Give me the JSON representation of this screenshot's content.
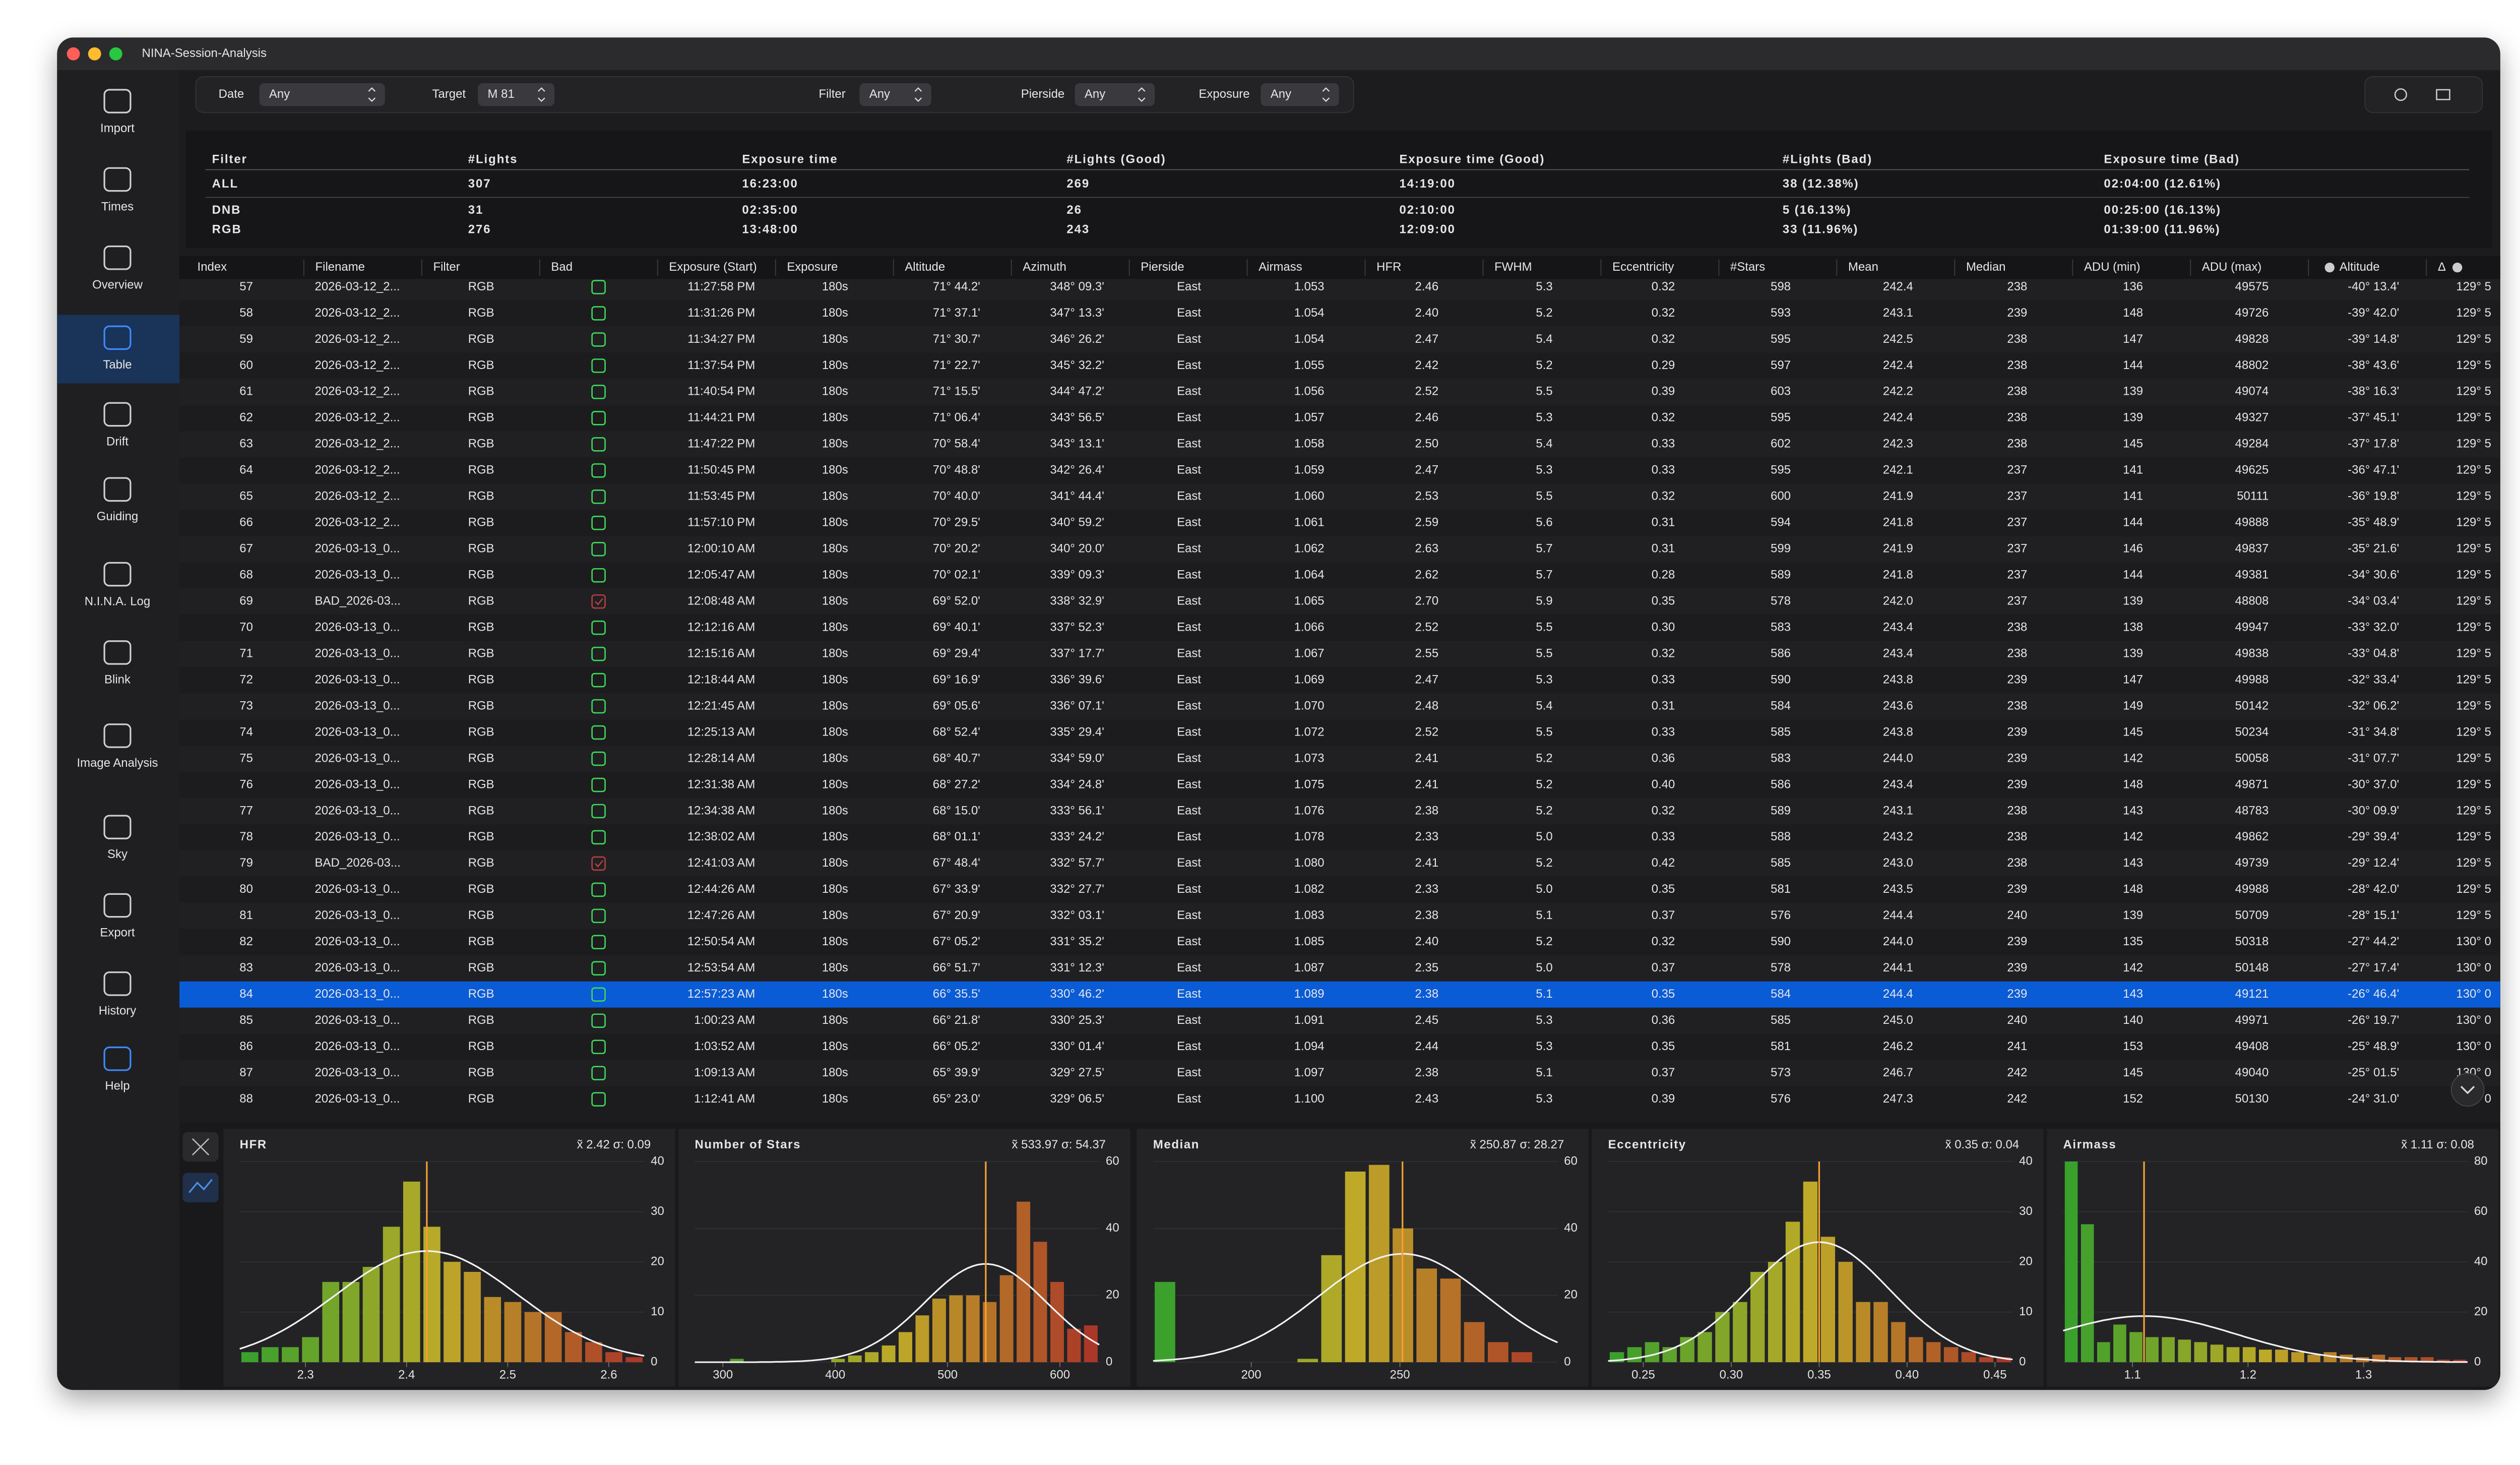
{
  "window": {
    "title": "NINA-Session-Analysis"
  },
  "sidebar": {
    "items": [
      "Import",
      "Times",
      "Overview",
      "Table",
      "Drift",
      "Guiding",
      "N.I.N.A. Log",
      "Blink",
      "Image Analysis",
      "Sky",
      "Export",
      "History",
      "Help"
    ],
    "active": "Table"
  },
  "filters": [
    {
      "label": "Date",
      "value": "Any"
    },
    {
      "label": "Target",
      "value": "M 81"
    },
    {
      "label": "Filter",
      "value": "Any"
    },
    {
      "label": "Pierside",
      "value": "Any"
    },
    {
      "label": "Exposure",
      "value": "Any"
    }
  ],
  "summary": {
    "columns": [
      "Filter",
      "#Lights",
      "Exposure time",
      "#Lights (Good)",
      "Exposure time (Good)",
      "#Lights (Bad)",
      "Exposure time (Bad)"
    ],
    "rows": [
      [
        "ALL",
        "307",
        "16:23:00",
        "269",
        "14:19:00",
        "38 (12.38%)",
        "02:04:00 (12.61%)"
      ],
      [
        "DNB",
        "31",
        "02:35:00",
        "26",
        "02:10:00",
        "5 (16.13%)",
        "00:25:00 (16.13%)"
      ],
      [
        "RGB",
        "276",
        "13:48:00",
        "243",
        "12:09:00",
        "33 (11.96%)",
        "01:39:00 (11.96%)"
      ]
    ]
  },
  "table": {
    "columns": [
      "Index",
      "Filename",
      "Filter",
      "Bad",
      "Exposure (Start)",
      "Exposure",
      "Altitude",
      "Azimuth",
      "Pierside",
      "Airmass",
      "HFR",
      "FWHM",
      "Eccentricity",
      "#Stars",
      "Mean",
      "Median",
      "ADU (min)",
      "ADU (max)",
      "Altitude",
      "Δ"
    ],
    "selected_row": "84",
    "rows": [
      [
        "57",
        "2026-03-12_2...",
        "RGB",
        false,
        "11:27:58 PM",
        "180s",
        "71° 44.2'",
        "348° 09.3'",
        "East",
        "1.053",
        "2.46",
        "5.3",
        "0.32",
        "598",
        "242.4",
        "238",
        "136",
        "49575",
        "-40° 13.4'",
        "129° 5"
      ],
      [
        "58",
        "2026-03-12_2...",
        "RGB",
        false,
        "11:31:26 PM",
        "180s",
        "71° 37.1'",
        "347° 13.3'",
        "East",
        "1.054",
        "2.40",
        "5.2",
        "0.32",
        "593",
        "243.1",
        "239",
        "148",
        "49726",
        "-39° 42.0'",
        "129° 5"
      ],
      [
        "59",
        "2026-03-12_2...",
        "RGB",
        false,
        "11:34:27 PM",
        "180s",
        "71° 30.7'",
        "346° 26.2'",
        "East",
        "1.054",
        "2.47",
        "5.4",
        "0.32",
        "595",
        "242.5",
        "238",
        "147",
        "49828",
        "-39° 14.8'",
        "129° 5"
      ],
      [
        "60",
        "2026-03-12_2...",
        "RGB",
        false,
        "11:37:54 PM",
        "180s",
        "71° 22.7'",
        "345° 32.2'",
        "East",
        "1.055",
        "2.42",
        "5.2",
        "0.29",
        "597",
        "242.4",
        "238",
        "144",
        "48802",
        "-38° 43.6'",
        "129° 5"
      ],
      [
        "61",
        "2026-03-12_2...",
        "RGB",
        false,
        "11:40:54 PM",
        "180s",
        "71° 15.5'",
        "344° 47.2'",
        "East",
        "1.056",
        "2.52",
        "5.5",
        "0.39",
        "603",
        "242.2",
        "238",
        "139",
        "49074",
        "-38° 16.3'",
        "129° 5"
      ],
      [
        "62",
        "2026-03-12_2...",
        "RGB",
        false,
        "11:44:21 PM",
        "180s",
        "71° 06.4'",
        "343° 56.5'",
        "East",
        "1.057",
        "2.46",
        "5.3",
        "0.32",
        "595",
        "242.4",
        "238",
        "139",
        "49327",
        "-37° 45.1'",
        "129° 5"
      ],
      [
        "63",
        "2026-03-12_2...",
        "RGB",
        false,
        "11:47:22 PM",
        "180s",
        "70° 58.4'",
        "343° 13.1'",
        "East",
        "1.058",
        "2.50",
        "5.4",
        "0.33",
        "602",
        "242.3",
        "238",
        "145",
        "49284",
        "-37° 17.8'",
        "129° 5"
      ],
      [
        "64",
        "2026-03-12_2...",
        "RGB",
        false,
        "11:50:45 PM",
        "180s",
        "70° 48.8'",
        "342° 26.4'",
        "East",
        "1.059",
        "2.47",
        "5.3",
        "0.33",
        "595",
        "242.1",
        "237",
        "141",
        "49625",
        "-36° 47.1'",
        "129° 5"
      ],
      [
        "65",
        "2026-03-12_2...",
        "RGB",
        false,
        "11:53:45 PM",
        "180s",
        "70° 40.0'",
        "341° 44.4'",
        "East",
        "1.060",
        "2.53",
        "5.5",
        "0.32",
        "600",
        "241.9",
        "237",
        "141",
        "50111",
        "-36° 19.8'",
        "129° 5"
      ],
      [
        "66",
        "2026-03-12_2...",
        "RGB",
        false,
        "11:57:10 PM",
        "180s",
        "70° 29.5'",
        "340° 59.2'",
        "East",
        "1.061",
        "2.59",
        "5.6",
        "0.31",
        "594",
        "241.8",
        "237",
        "144",
        "49888",
        "-35° 48.9'",
        "129° 5"
      ],
      [
        "67",
        "2026-03-13_0...",
        "RGB",
        false,
        "12:00:10 AM",
        "180s",
        "70° 20.2'",
        "340° 20.0'",
        "East",
        "1.062",
        "2.63",
        "5.7",
        "0.31",
        "599",
        "241.9",
        "237",
        "146",
        "49837",
        "-35° 21.6'",
        "129° 5"
      ],
      [
        "68",
        "2026-03-13_0...",
        "RGB",
        false,
        "12:05:47 AM",
        "180s",
        "70° 02.1'",
        "339° 09.3'",
        "East",
        "1.064",
        "2.62",
        "5.7",
        "0.28",
        "589",
        "241.8",
        "237",
        "144",
        "49381",
        "-34° 30.6'",
        "129° 5"
      ],
      [
        "69",
        "BAD_2026-03...",
        "RGB",
        true,
        "12:08:48 AM",
        "180s",
        "69° 52.0'",
        "338° 32.9'",
        "East",
        "1.065",
        "2.70",
        "5.9",
        "0.35",
        "578",
        "242.0",
        "237",
        "139",
        "48808",
        "-34° 03.4'",
        "129° 5"
      ],
      [
        "70",
        "2026-03-13_0...",
        "RGB",
        false,
        "12:12:16 AM",
        "180s",
        "69° 40.1'",
        "337° 52.3'",
        "East",
        "1.066",
        "2.52",
        "5.5",
        "0.30",
        "583",
        "243.4",
        "238",
        "138",
        "49947",
        "-33° 32.0'",
        "129° 5"
      ],
      [
        "71",
        "2026-03-13_0...",
        "RGB",
        false,
        "12:15:16 AM",
        "180s",
        "69° 29.4'",
        "337° 17.7'",
        "East",
        "1.067",
        "2.55",
        "5.5",
        "0.32",
        "586",
        "243.4",
        "238",
        "139",
        "49838",
        "-33° 04.8'",
        "129° 5"
      ],
      [
        "72",
        "2026-03-13_0...",
        "RGB",
        false,
        "12:18:44 AM",
        "180s",
        "69° 16.9'",
        "336° 39.6'",
        "East",
        "1.069",
        "2.47",
        "5.3",
        "0.33",
        "590",
        "243.8",
        "239",
        "147",
        "49988",
        "-32° 33.4'",
        "129° 5"
      ],
      [
        "73",
        "2026-03-13_0...",
        "RGB",
        false,
        "12:21:45 AM",
        "180s",
        "69° 05.6'",
        "336° 07.1'",
        "East",
        "1.070",
        "2.48",
        "5.4",
        "0.31",
        "584",
        "243.6",
        "238",
        "149",
        "50142",
        "-32° 06.2'",
        "129° 5"
      ],
      [
        "74",
        "2026-03-13_0...",
        "RGB",
        false,
        "12:25:13 AM",
        "180s",
        "68° 52.4'",
        "335° 29.4'",
        "East",
        "1.072",
        "2.52",
        "5.5",
        "0.33",
        "585",
        "243.8",
        "239",
        "145",
        "50234",
        "-31° 34.8'",
        "129° 5"
      ],
      [
        "75",
        "2026-03-13_0...",
        "RGB",
        false,
        "12:28:14 AM",
        "180s",
        "68° 40.7'",
        "334° 59.0'",
        "East",
        "1.073",
        "2.41",
        "5.2",
        "0.36",
        "583",
        "244.0",
        "239",
        "142",
        "50058",
        "-31° 07.7'",
        "129° 5"
      ],
      [
        "76",
        "2026-03-13_0...",
        "RGB",
        false,
        "12:31:38 AM",
        "180s",
        "68° 27.2'",
        "334° 24.8'",
        "East",
        "1.075",
        "2.41",
        "5.2",
        "0.40",
        "586",
        "243.4",
        "239",
        "148",
        "49871",
        "-30° 37.0'",
        "129° 5"
      ],
      [
        "77",
        "2026-03-13_0...",
        "RGB",
        false,
        "12:34:38 AM",
        "180s",
        "68° 15.0'",
        "333° 56.1'",
        "East",
        "1.076",
        "2.38",
        "5.2",
        "0.32",
        "589",
        "243.1",
        "238",
        "143",
        "48783",
        "-30° 09.9'",
        "129° 5"
      ],
      [
        "78",
        "2026-03-13_0...",
        "RGB",
        false,
        "12:38:02 AM",
        "180s",
        "68° 01.1'",
        "333° 24.2'",
        "East",
        "1.078",
        "2.33",
        "5.0",
        "0.33",
        "588",
        "243.2",
        "238",
        "142",
        "49862",
        "-29° 39.4'",
        "129° 5"
      ],
      [
        "79",
        "BAD_2026-03...",
        "RGB",
        true,
        "12:41:03 AM",
        "180s",
        "67° 48.4'",
        "332° 57.7'",
        "East",
        "1.080",
        "2.41",
        "5.2",
        "0.42",
        "585",
        "243.0",
        "238",
        "143",
        "49739",
        "-29° 12.4'",
        "129° 5"
      ],
      [
        "80",
        "2026-03-13_0...",
        "RGB",
        false,
        "12:44:26 AM",
        "180s",
        "67° 33.9'",
        "332° 27.7'",
        "East",
        "1.082",
        "2.33",
        "5.0",
        "0.35",
        "581",
        "243.5",
        "239",
        "148",
        "49988",
        "-28° 42.0'",
        "129° 5"
      ],
      [
        "81",
        "2026-03-13_0...",
        "RGB",
        false,
        "12:47:26 AM",
        "180s",
        "67° 20.9'",
        "332° 03.1'",
        "East",
        "1.083",
        "2.38",
        "5.1",
        "0.37",
        "576",
        "244.4",
        "240",
        "139",
        "50709",
        "-28° 15.1'",
        "129° 5"
      ],
      [
        "82",
        "2026-03-13_0...",
        "RGB",
        false,
        "12:50:54 AM",
        "180s",
        "67° 05.2'",
        "331° 35.2'",
        "East",
        "1.085",
        "2.40",
        "5.2",
        "0.32",
        "590",
        "244.0",
        "239",
        "135",
        "50318",
        "-27° 44.2'",
        "130° 0"
      ],
      [
        "83",
        "2026-03-13_0...",
        "RGB",
        false,
        "12:53:54 AM",
        "180s",
        "66° 51.7'",
        "331° 12.3'",
        "East",
        "1.087",
        "2.35",
        "5.0",
        "0.37",
        "578",
        "244.1",
        "239",
        "142",
        "50148",
        "-27° 17.4'",
        "130° 0"
      ],
      [
        "84",
        "2026-03-13_0...",
        "RGB",
        false,
        "12:57:23 AM",
        "180s",
        "66° 35.5'",
        "330° 46.2'",
        "East",
        "1.089",
        "2.38",
        "5.1",
        "0.35",
        "584",
        "244.4",
        "239",
        "143",
        "49121",
        "-26° 46.4'",
        "130° 0"
      ],
      [
        "85",
        "2026-03-13_0...",
        "RGB",
        false,
        "1:00:23 AM",
        "180s",
        "66° 21.8'",
        "330° 25.3'",
        "East",
        "1.091",
        "2.45",
        "5.3",
        "0.36",
        "585",
        "245.0",
        "240",
        "140",
        "49971",
        "-26° 19.7'",
        "130° 0"
      ],
      [
        "86",
        "2026-03-13_0...",
        "RGB",
        false,
        "1:03:52 AM",
        "180s",
        "66° 05.2'",
        "330° 01.4'",
        "East",
        "1.094",
        "2.44",
        "5.3",
        "0.35",
        "581",
        "246.2",
        "241",
        "153",
        "49408",
        "-25° 48.9'",
        "130° 0"
      ],
      [
        "87",
        "2026-03-13_0...",
        "RGB",
        false,
        "1:09:13 AM",
        "180s",
        "65° 39.9'",
        "329° 27.5'",
        "East",
        "1.097",
        "2.38",
        "5.1",
        "0.37",
        "573",
        "246.7",
        "242",
        "145",
        "49040",
        "-25° 01.5'",
        "130° 0"
      ],
      [
        "88",
        "2026-03-13_0...",
        "RGB",
        false,
        "1:12:41 AM",
        "180s",
        "65° 23.0'",
        "329° 06.5'",
        "East",
        "1.100",
        "2.43",
        "5.3",
        "0.39",
        "576",
        "247.3",
        "242",
        "152",
        "50130",
        "-24° 31.0'",
        "130° 0"
      ]
    ]
  },
  "chart_data": [
    {
      "type": "histogram",
      "title": "HFR",
      "stats": "x̃ 2.42  σ: 0.09",
      "median": 2.42,
      "sigma": 0.09,
      "bins": [
        2.235,
        2.255,
        2.275,
        2.295,
        2.315,
        2.335,
        2.355,
        2.375,
        2.395,
        2.415,
        2.435,
        2.455,
        2.475,
        2.495,
        2.515,
        2.535,
        2.555,
        2.575,
        2.595,
        2.615,
        2.635
      ],
      "values": [
        2,
        3,
        3,
        5,
        16,
        16,
        19,
        27,
        36,
        27,
        20,
        18,
        13,
        12,
        10,
        10,
        6,
        4,
        2,
        1
      ],
      "xlim": [
        2.235,
        2.635
      ],
      "xticks": [
        2.3,
        2.4,
        2.5,
        2.6
      ],
      "ylim": [
        0,
        40
      ],
      "yticks": [
        0,
        10,
        20,
        30,
        40
      ]
    },
    {
      "type": "histogram",
      "title": "Number of Stars",
      "stats": "x̃ 533.97  σ: 54.37",
      "median": 533.97,
      "sigma": 54.37,
      "bins": [
        275,
        290,
        305,
        320,
        335,
        350,
        365,
        380,
        395,
        410,
        425,
        440,
        455,
        470,
        485,
        500,
        515,
        530,
        545,
        560,
        575,
        590,
        605,
        620,
        635
      ],
      "values": [
        0,
        0,
        1,
        0,
        0,
        0,
        0,
        0,
        1,
        2,
        3,
        5,
        9,
        14,
        19,
        20,
        20,
        18,
        26,
        48,
        36,
        24,
        10,
        11
      ],
      "xlim": [
        275,
        635
      ],
      "xticks": [
        300,
        400,
        500,
        600
      ],
      "ylim": [
        0,
        60
      ],
      "yticks": [
        0,
        20,
        40,
        60
      ]
    },
    {
      "type": "histogram",
      "title": "Median",
      "stats": "x̃ 250.87  σ: 28.27",
      "median": 250.87,
      "sigma": 28.27,
      "bins": [
        167,
        175,
        183,
        191,
        199,
        207,
        215,
        223,
        231,
        239,
        247,
        255,
        263,
        271,
        279,
        287,
        295,
        303
      ],
      "values": [
        24,
        0,
        0,
        0,
        0,
        0,
        1,
        32,
        57,
        59,
        40,
        28,
        25,
        12,
        6,
        3,
        0
      ],
      "xlim": [
        167,
        303
      ],
      "xticks": [
        200,
        250
      ],
      "ylim": [
        0,
        60
      ],
      "yticks": [
        0,
        20,
        40,
        60
      ]
    },
    {
      "type": "histogram",
      "title": "Eccentricity",
      "stats": "x̃ 0.35  σ: 0.04",
      "median": 0.35,
      "sigma": 0.04,
      "bins": [
        0.23,
        0.24,
        0.25,
        0.26,
        0.27,
        0.28,
        0.29,
        0.3,
        0.31,
        0.32,
        0.33,
        0.34,
        0.35,
        0.36,
        0.37,
        0.38,
        0.39,
        0.4,
        0.41,
        0.42,
        0.43,
        0.44,
        0.45,
        0.46
      ],
      "values": [
        2,
        3,
        4,
        3,
        5,
        6,
        10,
        12,
        18,
        20,
        28,
        36,
        25,
        20,
        12,
        12,
        8,
        5,
        4,
        3,
        2,
        1,
        1
      ],
      "xlim": [
        0.23,
        0.46
      ],
      "xticks": [
        0.25,
        {
          "value": 0.3,
          "label": "0.30"
        },
        0.35,
        {
          "value": 0.4,
          "label": "0.40"
        },
        0.45
      ],
      "ylim": [
        0,
        40
      ],
      "yticks": [
        0,
        10,
        20,
        30,
        40
      ]
    },
    {
      "type": "histogram",
      "title": "Airmass",
      "stats": "x̃ 1.11  σ: 0.08",
      "median": 1.11,
      "sigma": 0.08,
      "bins": [
        1.04,
        1.054,
        1.068,
        1.082,
        1.096,
        1.11,
        1.124,
        1.138,
        1.152,
        1.166,
        1.18,
        1.194,
        1.208,
        1.222,
        1.236,
        1.25,
        1.264,
        1.278,
        1.292,
        1.306,
        1.32,
        1.334,
        1.348,
        1.362,
        1.376,
        1.39
      ],
      "values": [
        80,
        55,
        8,
        15,
        12,
        10,
        10,
        9,
        8,
        7,
        6,
        6,
        5,
        5,
        4,
        3,
        4,
        3,
        2,
        3,
        2,
        2,
        2,
        1,
        1
      ],
      "xlim": [
        1.04,
        1.39
      ],
      "xticks": [
        1.1,
        1.2,
        1.3
      ],
      "ylim": [
        0,
        80
      ],
      "yticks": [
        0,
        20,
        40,
        60,
        80
      ]
    }
  ]
}
